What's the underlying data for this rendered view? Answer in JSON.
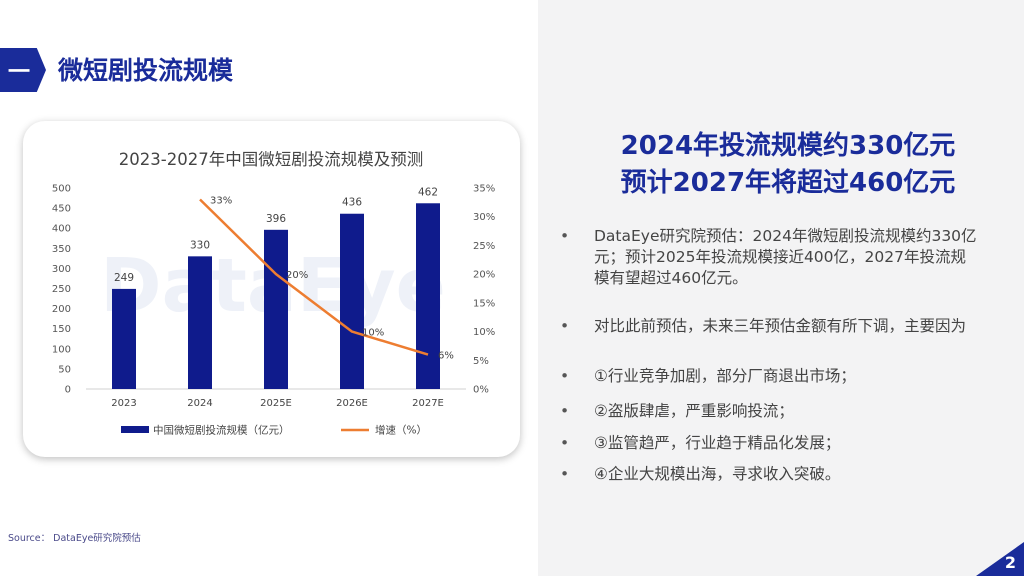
{
  "section": {
    "number": "一",
    "title": "微短剧投流规模"
  },
  "headline": {
    "line1": "2024年投流规模约330亿元",
    "line2": "预计2027年将超过460亿元"
  },
  "bullets": [
    {
      "marker": "•",
      "text": "DataEye研究院预估：2024年微短剧投流规模约330亿元；预计2025年投流规模接近400亿，2027年投流规模有望超过460亿元。"
    },
    {
      "marker": "•",
      "text": "对比此前预估，未来三年预估金额有所下调，主要因为"
    },
    {
      "marker": "•",
      "text": "①行业竞争加剧，部分厂商退出市场；"
    },
    {
      "marker": "•",
      "text": "②盗版肆虐，严重影响投流；"
    },
    {
      "marker": "•",
      "text": "③监管趋严，行业趋于精品化发展；"
    },
    {
      "marker": "•",
      "text": "④企业大规模出海，寻求收入突破。"
    }
  ],
  "source": "Source：  DataEye研究院预估",
  "page_number": "2",
  "watermark": "DataEye",
  "colors": {
    "brand": "#1a2c9a",
    "bar": "#0f1b8c",
    "line": "#ed7d31",
    "panel": "#f3f3f4"
  },
  "chart_data": {
    "type": "bar",
    "title": "2023-2027年中国微短剧投流规模及预测",
    "categories": [
      "2023",
      "2024",
      "2025E",
      "2026E",
      "2027E"
    ],
    "series": [
      {
        "name": "中国微短剧投流规模（亿元）",
        "type": "bar",
        "axis": "left",
        "values": [
          249,
          330,
          396,
          436,
          462
        ],
        "labels": [
          "249",
          "330",
          "396",
          "436",
          "462"
        ]
      },
      {
        "name": "增速（%）",
        "type": "line",
        "axis": "right",
        "values": [
          null,
          33,
          20,
          10,
          6
        ],
        "labels": [
          "",
          "33%",
          "20%",
          "10%",
          "6%"
        ]
      }
    ],
    "y_left": {
      "min": 0,
      "max": 500,
      "ticks": [
        "0",
        "50",
        "100",
        "150",
        "200",
        "250",
        "300",
        "350",
        "400",
        "450",
        "500"
      ]
    },
    "y_right": {
      "min": 0,
      "max": 35,
      "ticks": [
        "0%",
        "5%",
        "10%",
        "15%",
        "20%",
        "25%",
        "30%",
        "35%"
      ]
    },
    "legend": "bottom"
  }
}
